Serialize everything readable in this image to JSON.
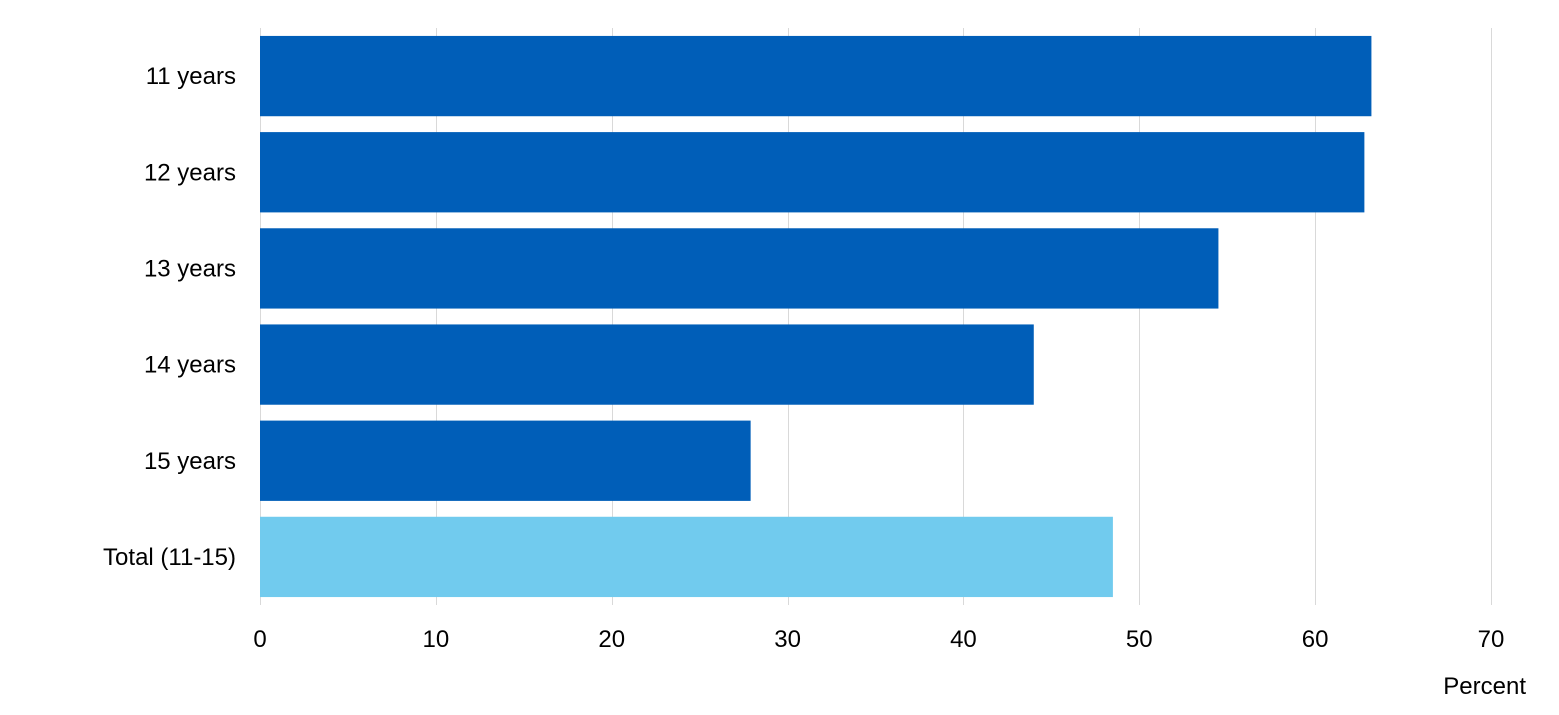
{
  "chart_data": {
    "type": "bar",
    "orientation": "horizontal",
    "categories": [
      "11 years",
      "12 years",
      "13 years",
      "14 years",
      "15 years",
      "Total (11-15)"
    ],
    "values": [
      63.2,
      62.8,
      54.5,
      44.0,
      27.9,
      48.5
    ],
    "highlight_category": "Total (11-15)",
    "title": "",
    "xlabel": "Percent",
    "ylabel": "",
    "xlim": [
      0,
      70
    ],
    "xticks": [
      0,
      10,
      20,
      30,
      40,
      50,
      60,
      70
    ],
    "grid": "vertical",
    "legend": "none"
  },
  "colors": {
    "bar": "#005eb8",
    "highlight_bar": "#71cbee",
    "gridline": "#d9d9d9",
    "text": "#000000"
  }
}
